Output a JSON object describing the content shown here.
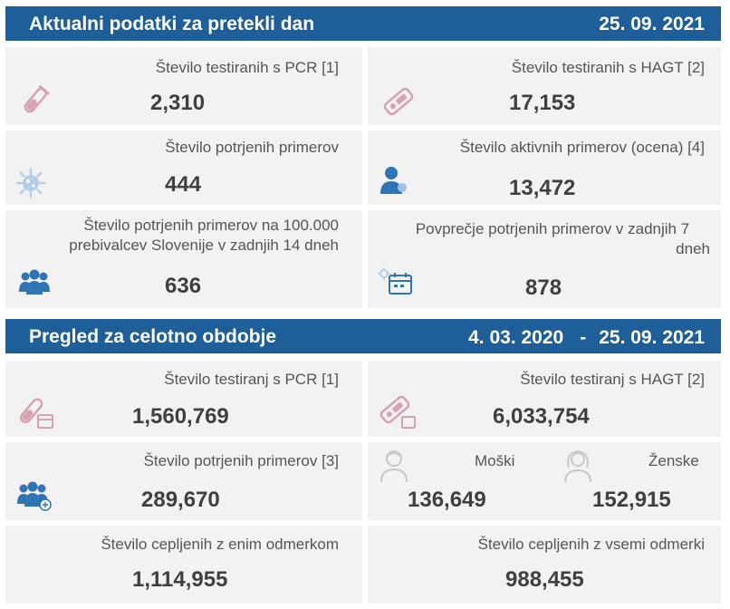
{
  "daily": {
    "title": "Aktualni podatki za pretekli dan",
    "date": "25. 09. 2021",
    "cards": {
      "pcr": {
        "label": "Število testiranih s PCR [1]",
        "value": "2,310",
        "icon": "test-tube-icon"
      },
      "hagt": {
        "label": "Število testiranih s HAGT [2]",
        "value": "17,153",
        "icon": "rapid-test-icon"
      },
      "confirmed": {
        "label": "Število potrjenih primerov",
        "value": "444",
        "icon": "virus-icon"
      },
      "active": {
        "label": "Število aktivnih primerov (ocena) [4]",
        "value": "13,472",
        "icon": "person-icon"
      },
      "per100k": {
        "label_line1": "Število potrjenih primerov na 100.000",
        "label_line2": "prebivalcev Slovenije v zadnjih 14 dneh",
        "value": "636",
        "icon": "group-icon"
      },
      "avg7": {
        "label_line1": "Povprečje potrjenih primerov v zadnjih 7",
        "label_line2": "dneh",
        "value": "878",
        "icon": "calendar-virus-icon"
      }
    }
  },
  "overall": {
    "title": "Pregled za celotno obdobje",
    "date_from": "4. 03. 2020",
    "dash": "-",
    "date_to": "25. 09. 2021",
    "cards": {
      "pcr": {
        "label": "Število testiranj s PCR [1]",
        "value": "1,560,769",
        "icon": "test-tube-calendar-icon"
      },
      "hagt": {
        "label": "Število testiranj s HAGT [2]",
        "value": "6,033,754",
        "icon": "rapid-test-icon"
      },
      "confirmed": {
        "label": "Število potrjenih primerov [3]",
        "value": "289,670",
        "icon": "group-plus-icon"
      },
      "men": {
        "label": "Moški",
        "value": "136,649",
        "icon": "man-icon"
      },
      "women": {
        "label": "Ženske",
        "value": "152,915",
        "icon": "woman-icon"
      },
      "vacc_one": {
        "label": "Število cepljenih z enim odmerkom",
        "value": "1,114,955"
      },
      "vacc_all": {
        "label": "Število cepljenih z vsemi odmerki",
        "value": "988,455"
      }
    }
  }
}
